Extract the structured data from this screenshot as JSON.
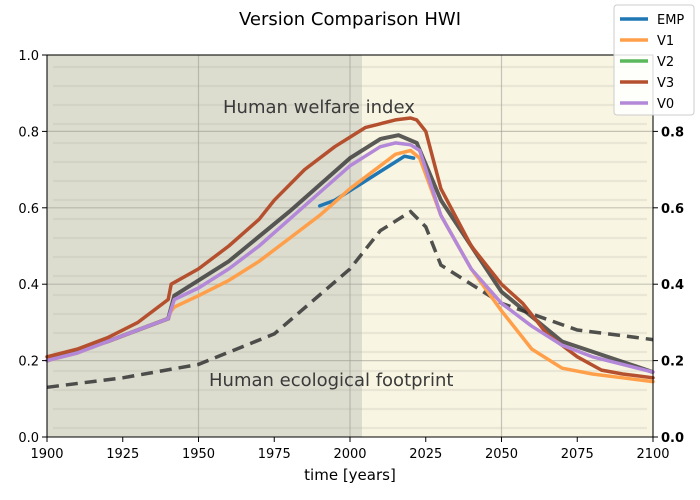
{
  "chart_data": {
    "type": "line",
    "title": "Version Comparison HWI",
    "xlabel": "time [years]",
    "ylabel": "",
    "xlim": [
      1900,
      2100
    ],
    "ylim": [
      0,
      1.0
    ],
    "x_ticks": [
      "1900",
      "1925",
      "1950",
      "1975",
      "2000",
      "2025",
      "2050",
      "2075",
      "2100"
    ],
    "y_ticks": [
      "0.0",
      "0.2",
      "0.4",
      "0.6",
      "0.8",
      "1.0"
    ],
    "y_ticks_right": [
      "0.0",
      "0.2",
      "0.4",
      "0.6",
      "0.8"
    ],
    "legend_position": "top-right",
    "background_image": {
      "label_top": "Human welfare index",
      "label_bottom": "Human ecological footprint",
      "welfare_curve": [
        [
          1900,
          0.2
        ],
        [
          1920,
          0.25
        ],
        [
          1940,
          0.31
        ],
        [
          1942,
          0.37
        ],
        [
          1960,
          0.46
        ],
        [
          1980,
          0.59
        ],
        [
          1990,
          0.66
        ],
        [
          2000,
          0.73
        ],
        [
          2010,
          0.78
        ],
        [
          2016,
          0.79
        ],
        [
          2022,
          0.77
        ],
        [
          2030,
          0.62
        ],
        [
          2050,
          0.38
        ],
        [
          2070,
          0.25
        ],
        [
          2100,
          0.17
        ]
      ],
      "footprint_curve": [
        [
          1900,
          0.13
        ],
        [
          1925,
          0.155
        ],
        [
          1950,
          0.19
        ],
        [
          1975,
          0.27
        ],
        [
          2000,
          0.44
        ],
        [
          2010,
          0.54
        ],
        [
          2020,
          0.59
        ],
        [
          2025,
          0.55
        ],
        [
          2030,
          0.45
        ],
        [
          2050,
          0.35
        ],
        [
          2075,
          0.28
        ],
        [
          2100,
          0.255
        ]
      ]
    },
    "series": [
      {
        "name": "EMP",
        "color": "#1f77b4",
        "x": [
          1990,
          1995,
          2000,
          2005,
          2010,
          2015,
          2018,
          2021
        ],
        "y": [
          0.605,
          0.62,
          0.645,
          0.67,
          0.695,
          0.72,
          0.735,
          0.73
        ]
      },
      {
        "name": "V1",
        "color": "#ff9f4a",
        "x": [
          1900,
          1910,
          1920,
          1930,
          1940,
          1941,
          1942,
          1950,
          1960,
          1970,
          1980,
          1990,
          2000,
          2010,
          2015,
          2020,
          2023,
          2030,
          2040,
          2050,
          2060,
          2070,
          2080,
          2090,
          2100
        ],
        "y": [
          0.2,
          0.22,
          0.25,
          0.28,
          0.31,
          0.33,
          0.34,
          0.37,
          0.41,
          0.46,
          0.52,
          0.58,
          0.65,
          0.71,
          0.74,
          0.75,
          0.73,
          0.58,
          0.44,
          0.33,
          0.23,
          0.18,
          0.165,
          0.155,
          0.145
        ]
      },
      {
        "name": "V2",
        "color": "#5cb85c",
        "x": [
          1900,
          2100
        ],
        "y": [
          null,
          null
        ]
      },
      {
        "name": "V3",
        "color": "#b5502f",
        "x": [
          1900,
          1910,
          1920,
          1930,
          1940,
          1941,
          1950,
          1960,
          1970,
          1975,
          1985,
          1995,
          2005,
          2010,
          2015,
          2020,
          2022,
          2025,
          2030,
          2040,
          2050,
          2057,
          2065,
          2075,
          2083,
          2090,
          2100
        ],
        "y": [
          0.21,
          0.23,
          0.26,
          0.3,
          0.36,
          0.4,
          0.44,
          0.5,
          0.57,
          0.62,
          0.7,
          0.76,
          0.81,
          0.82,
          0.83,
          0.835,
          0.83,
          0.8,
          0.65,
          0.5,
          0.4,
          0.35,
          0.27,
          0.21,
          0.175,
          0.165,
          0.155
        ]
      },
      {
        "name": "V0",
        "color": "#b388d9",
        "x": [
          1900,
          1910,
          1920,
          1930,
          1940,
          1942,
          1950,
          1960,
          1970,
          1980,
          1990,
          2000,
          2010,
          2015,
          2020,
          2023,
          2030,
          2040,
          2050,
          2060,
          2070,
          2080,
          2090,
          2100
        ],
        "y": [
          0.2,
          0.22,
          0.25,
          0.28,
          0.31,
          0.36,
          0.39,
          0.44,
          0.5,
          0.57,
          0.64,
          0.71,
          0.76,
          0.77,
          0.765,
          0.75,
          0.58,
          0.44,
          0.35,
          0.29,
          0.24,
          0.21,
          0.19,
          0.17
        ]
      }
    ]
  }
}
